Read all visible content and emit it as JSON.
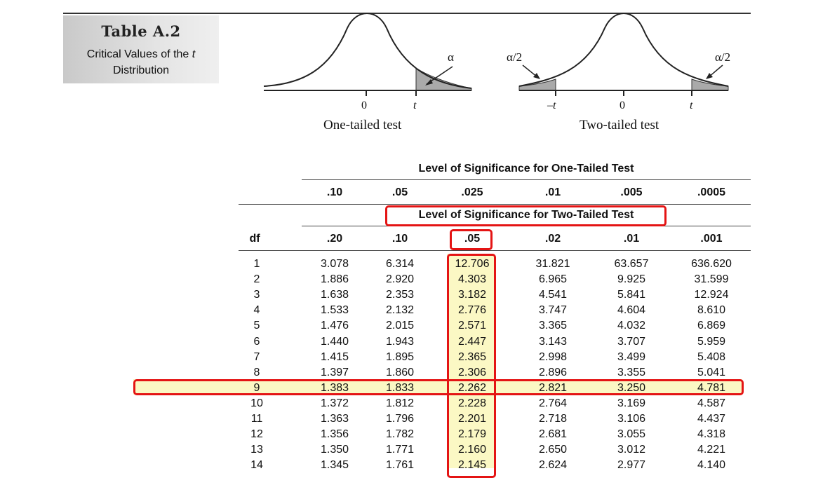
{
  "header": {
    "title": "Table A.2",
    "subtitle_line1": "Critical Values of the",
    "subtitle_t": "t",
    "subtitle_line2": "Distribution"
  },
  "one_tailed_figure": {
    "alpha_label": "α",
    "zero": "0",
    "t": "t",
    "caption": "One-tailed test"
  },
  "two_tailed_figure": {
    "alpha_left": "α/2",
    "alpha_right": "α/2",
    "neg_t": "–t",
    "zero": "0",
    "t": "t",
    "caption": "Two-tailed test"
  },
  "table": {
    "one_tailed_heading": "Level of Significance for One-Tailed Test",
    "two_tailed_heading": "Level of Significance for Two-Tailed Test",
    "df_label": "df",
    "one_tailed_levels": [
      ".10",
      ".05",
      ".025",
      ".01",
      ".005",
      ".0005"
    ],
    "two_tailed_levels": [
      ".20",
      ".10",
      ".05",
      ".02",
      ".01",
      ".001"
    ],
    "rows": [
      {
        "df": "1",
        "v": [
          "3.078",
          "6.314",
          "12.706",
          "31.821",
          "63.657",
          "636.620"
        ]
      },
      {
        "df": "2",
        "v": [
          "1.886",
          "2.920",
          "4.303",
          "6.965",
          "9.925",
          "31.599"
        ]
      },
      {
        "df": "3",
        "v": [
          "1.638",
          "2.353",
          "3.182",
          "4.541",
          "5.841",
          "12.924"
        ]
      },
      {
        "df": "4",
        "v": [
          "1.533",
          "2.132",
          "2.776",
          "3.747",
          "4.604",
          "8.610"
        ]
      },
      {
        "df": "5",
        "v": [
          "1.476",
          "2.015",
          "2.571",
          "3.365",
          "4.032",
          "6.869"
        ]
      },
      {
        "df": "6",
        "v": [
          "1.440",
          "1.943",
          "2.447",
          "3.143",
          "3.707",
          "5.959"
        ]
      },
      {
        "df": "7",
        "v": [
          "1.415",
          "1.895",
          "2.365",
          "2.998",
          "3.499",
          "5.408"
        ]
      },
      {
        "df": "8",
        "v": [
          "1.397",
          "1.860",
          "2.306",
          "2.896",
          "3.355",
          "5.041"
        ]
      },
      {
        "df": "9",
        "v": [
          "1.383",
          "1.833",
          "2.262",
          "2.821",
          "3.250",
          "4.781"
        ]
      },
      {
        "df": "10",
        "v": [
          "1.372",
          "1.812",
          "2.228",
          "2.764",
          "3.169",
          "4.587"
        ]
      },
      {
        "df": "11",
        "v": [
          "1.363",
          "1.796",
          "2.201",
          "2.718",
          "3.106",
          "4.437"
        ]
      },
      {
        "df": "12",
        "v": [
          "1.356",
          "1.782",
          "2.179",
          "2.681",
          "3.055",
          "4.318"
        ]
      },
      {
        "df": "13",
        "v": [
          "1.350",
          "1.771",
          "2.160",
          "2.650",
          "3.012",
          "4.221"
        ]
      },
      {
        "df": "14",
        "v": [
          "1.345",
          "1.761",
          "2.145",
          "2.624",
          "2.977",
          "4.140"
        ]
      }
    ]
  },
  "highlight_colors": {
    "box": "#e41414",
    "fill": "#fbf8c4"
  }
}
